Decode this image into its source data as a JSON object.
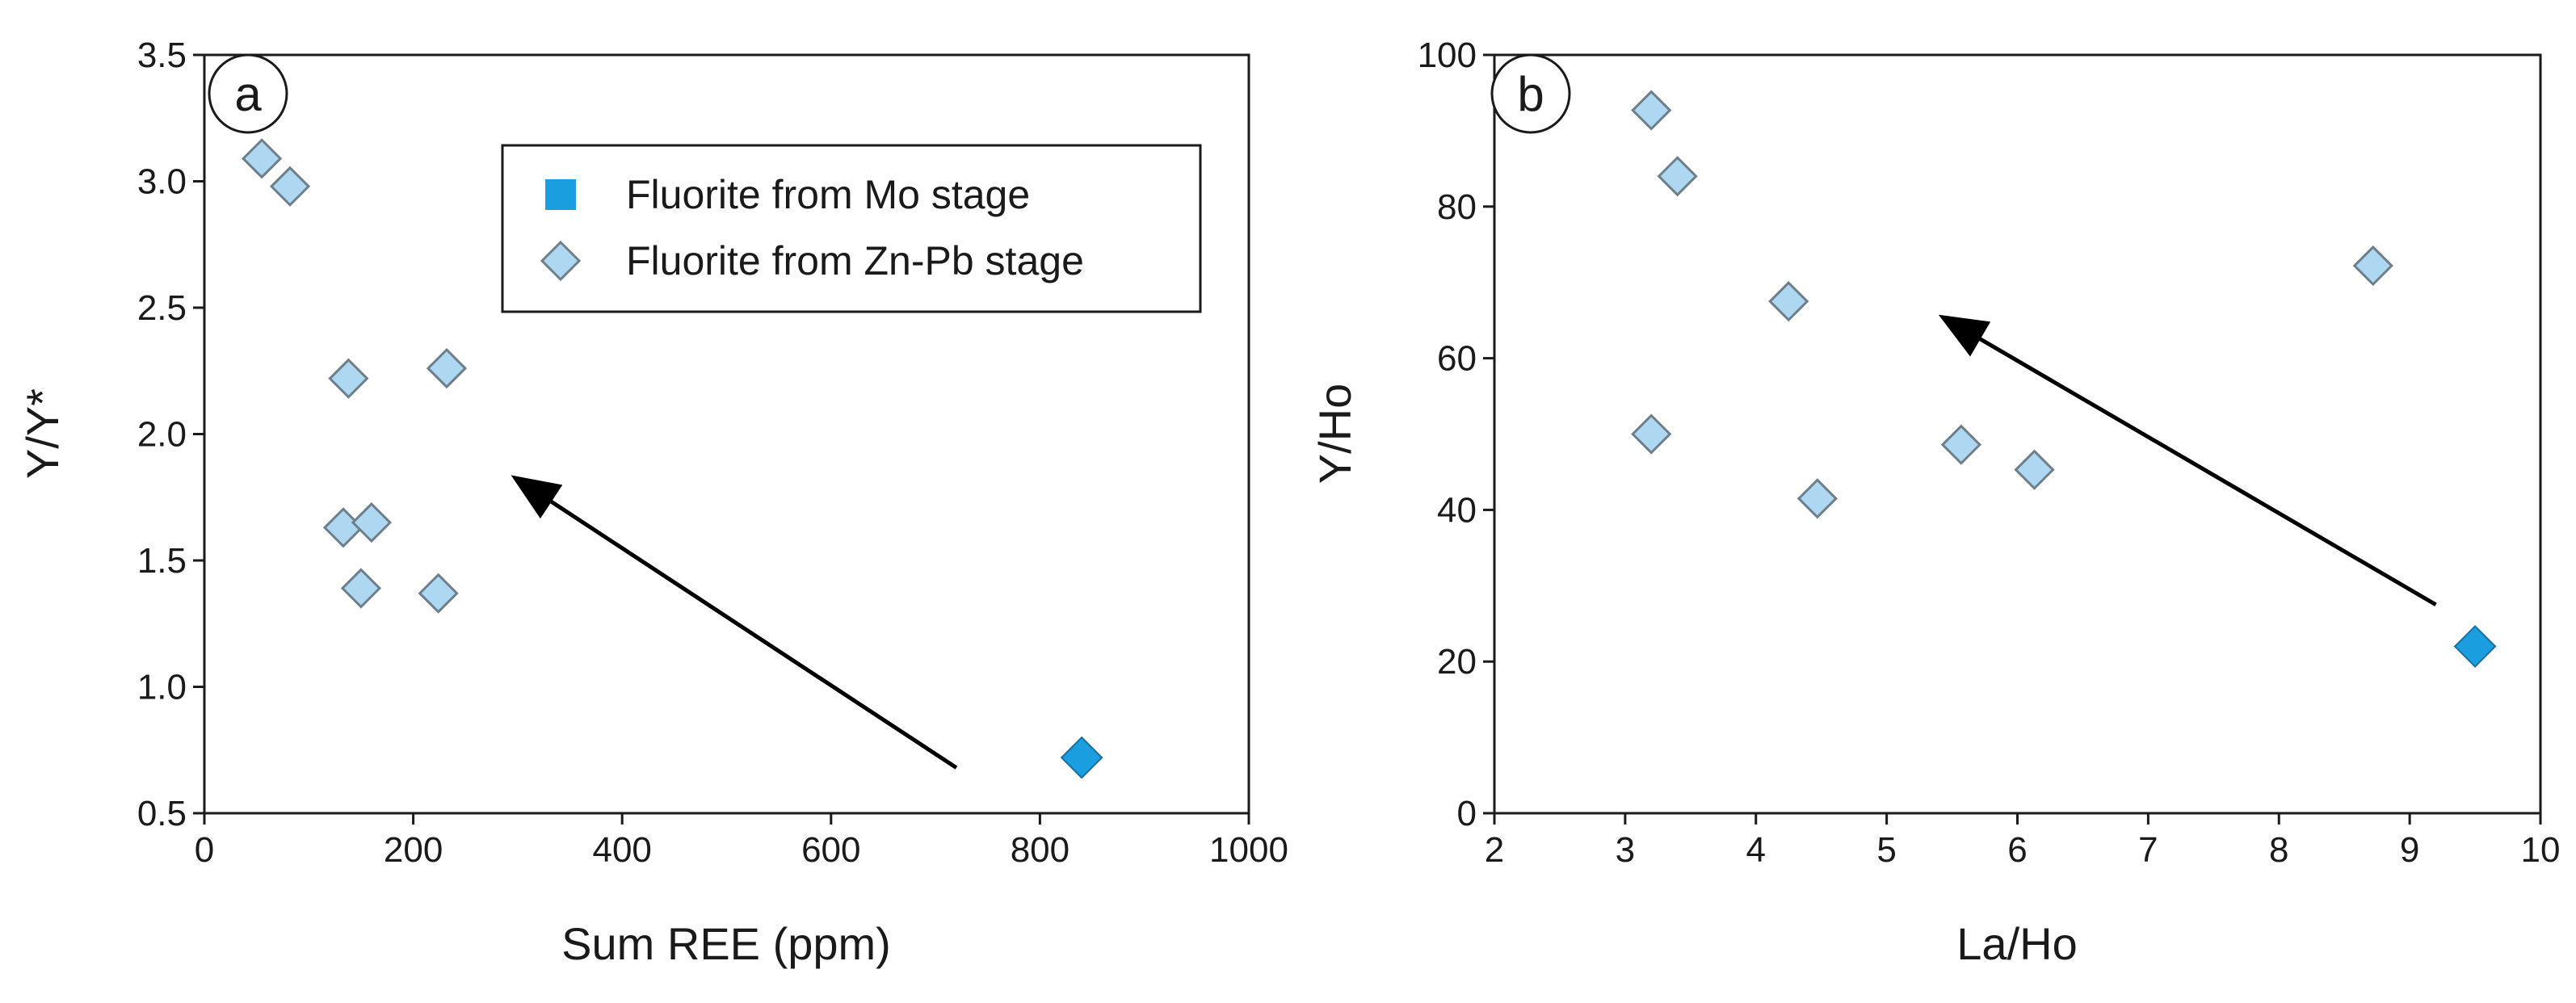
{
  "colors": {
    "mo_fill": "#1b9ee0",
    "mo_stroke": "#1a6ea0",
    "zn_fill": "#aed8f2",
    "zn_stroke": "#6d7f8a",
    "axis": "#1a1a1a",
    "arrow": "#000000"
  },
  "chart_data": [
    {
      "type": "scatter",
      "panel_label": "a",
      "xlabel": "Sum REE (ppm)",
      "ylabel": "Y/Y*",
      "xlim": [
        0,
        1000
      ],
      "ylim": [
        0.5,
        3.5
      ],
      "xticks": [
        0,
        200,
        400,
        600,
        800,
        1000
      ],
      "xtick_labels": [
        "0",
        "200",
        "400",
        "600",
        "800",
        "1000"
      ],
      "yticks": [
        0.5,
        1.0,
        1.5,
        2.0,
        2.5,
        3.0,
        3.5
      ],
      "ytick_labels": [
        "0.5",
        "1.0",
        "1.5",
        "2.0",
        "2.5",
        "3.0",
        "3.5"
      ],
      "legend": {
        "position": "top-right",
        "entries": [
          {
            "label": "Fluorite from Mo stage",
            "marker": "square",
            "series": "mo"
          },
          {
            "label": "Fluorite from Zn-Pb stage",
            "marker": "diamond",
            "series": "zn"
          }
        ]
      },
      "series": [
        {
          "name": "Fluorite from Mo stage",
          "key": "mo",
          "marker": "diamond-filled",
          "points": [
            [
              840,
              0.72
            ]
          ]
        },
        {
          "name": "Fluorite from Zn-Pb stage",
          "key": "zn",
          "marker": "diamond",
          "points": [
            [
              55,
              3.09
            ],
            [
              82,
              2.98
            ],
            [
              138,
              2.22
            ],
            [
              232,
              2.26
            ],
            [
              133,
              1.63
            ],
            [
              160,
              1.65
            ],
            [
              150,
              1.39
            ],
            [
              224,
              1.37
            ]
          ]
        }
      ],
      "arrow": {
        "from": [
          720,
          0.68
        ],
        "to": [
          300,
          1.82
        ]
      }
    },
    {
      "type": "scatter",
      "panel_label": "b",
      "xlabel": "La/Ho",
      "ylabel": "Y/Ho",
      "xlim": [
        2,
        10
      ],
      "ylim": [
        0,
        100
      ],
      "xticks": [
        2,
        3,
        4,
        5,
        6,
        7,
        8,
        9,
        10
      ],
      "xtick_labels": [
        "2",
        "3",
        "4",
        "5",
        "6",
        "7",
        "8",
        "9",
        "10"
      ],
      "yticks": [
        0,
        20,
        40,
        60,
        80,
        100
      ],
      "ytick_labels": [
        "0",
        "20",
        "40",
        "60",
        "80",
        "100"
      ],
      "series": [
        {
          "name": "Fluorite from Mo stage",
          "key": "mo",
          "marker": "diamond-filled",
          "points": [
            [
              9.5,
              22
            ]
          ]
        },
        {
          "name": "Fluorite from Zn-Pb stage",
          "key": "zn",
          "marker": "diamond",
          "points": [
            [
              3.2,
              92.7
            ],
            [
              3.4,
              84
            ],
            [
              4.25,
              67.5
            ],
            [
              3.2,
              50
            ],
            [
              4.47,
              41.5
            ],
            [
              5.57,
              48.6
            ],
            [
              6.13,
              45.3
            ],
            [
              8.72,
              72.2
            ]
          ]
        }
      ],
      "arrow": {
        "from": [
          9.2,
          27.5
        ],
        "to": [
          5.45,
          65.2
        ]
      }
    }
  ]
}
